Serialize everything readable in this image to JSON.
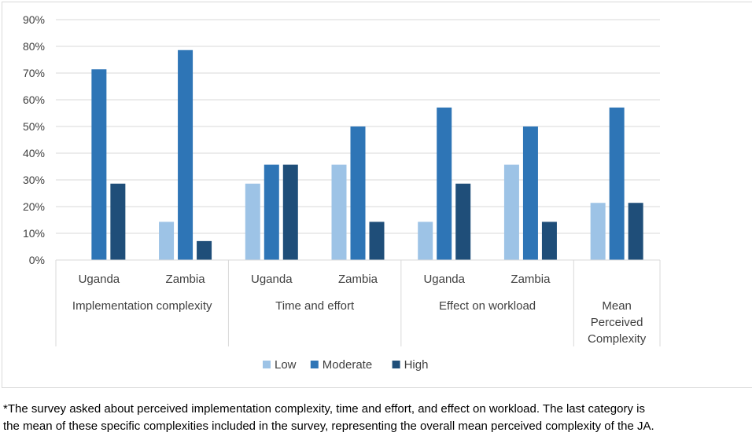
{
  "chart_data": {
    "type": "bar",
    "title": "",
    "xlabel": "",
    "ylabel": "",
    "ylim": [
      0,
      0.9
    ],
    "yticks": [
      "0%",
      "10%",
      "20%",
      "30%",
      "40%",
      "50%",
      "60%",
      "70%",
      "80%",
      "90%"
    ],
    "grid": true,
    "legend_position": "bottom",
    "groups": [
      {
        "label": [
          "Implementation complexity"
        ],
        "categories": [
          "Uganda",
          "Zambia"
        ]
      },
      {
        "label": [
          "Time and effort"
        ],
        "categories": [
          "Uganda",
          "Zambia"
        ]
      },
      {
        "label": [
          "Effect on workload"
        ],
        "categories": [
          "Uganda",
          "Zambia"
        ]
      },
      {
        "label": [
          "Mean",
          "Perceived",
          "Complexity"
        ],
        "categories": [
          ""
        ]
      }
    ],
    "series": [
      {
        "name": "Low",
        "color": "#9dc3e6",
        "values": [
          0,
          0.143,
          0.286,
          0.357,
          0.143,
          0.357,
          0.214
        ]
      },
      {
        "name": "Moderate",
        "color": "#2e75b6",
        "values": [
          0.714,
          0.786,
          0.357,
          0.5,
          0.571,
          0.5,
          0.571
        ]
      },
      {
        "name": "High",
        "color": "#1f4e79",
        "values": [
          0.286,
          0.071,
          0.357,
          0.143,
          0.286,
          0.143,
          0.214
        ]
      }
    ]
  },
  "footnote": [
    "*The survey asked about perceived implementation complexity, time and effort, and effect on workload. The last category is",
    "the mean of these specific complexities included in the survey, representing the overall mean perceived complexity of the JA."
  ]
}
